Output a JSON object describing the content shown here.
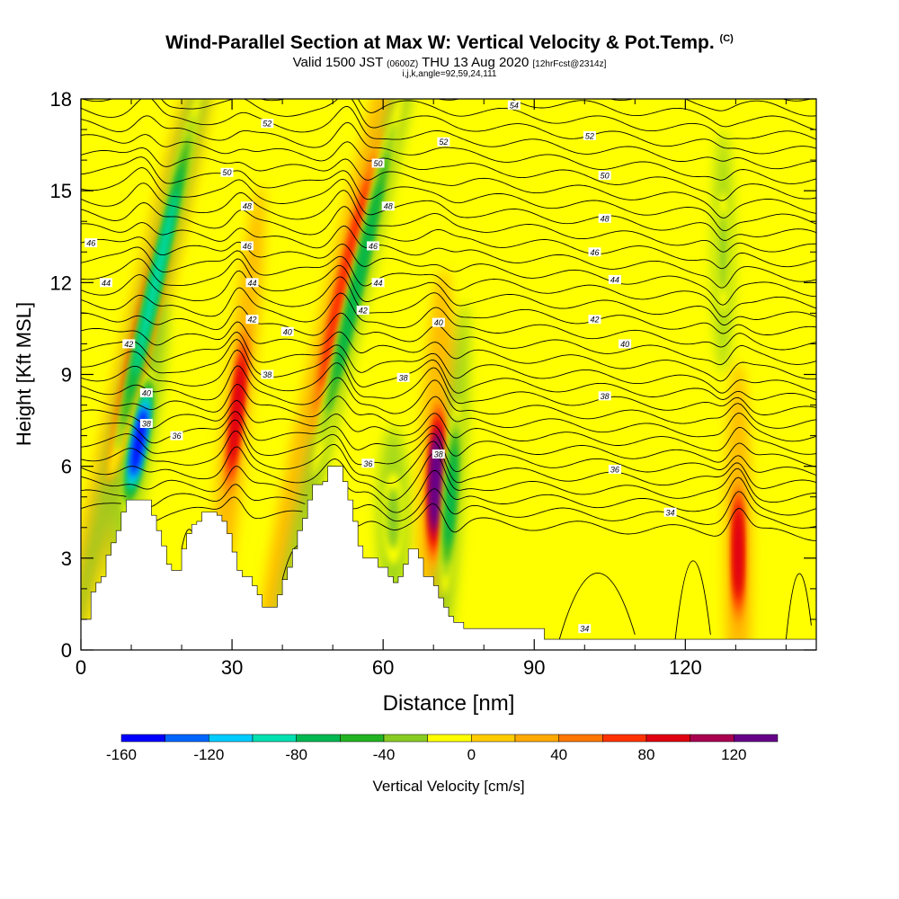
{
  "header": {
    "title": "Wind-Parallel Section at Max W: Vertical Velocity & Pot.Temp.",
    "copyright": "(C)",
    "valid_prefix": "Valid 1500 JST",
    "valid_utc": "(0600Z)",
    "valid_date": "THU 13 Aug 2020",
    "forecast": "[12hrFcst@2314z]",
    "ijk_info": "i,j,k,angle=92,59,24,111"
  },
  "chart_data": {
    "type": "heatmap",
    "xlabel": "Distance [nm]",
    "ylabel": "Height [Kft MSL]",
    "x_ticks": [
      0,
      30,
      60,
      90,
      120
    ],
    "y_ticks": [
      0,
      3,
      6,
      9,
      12,
      15,
      18
    ],
    "xlim": [
      0,
      146
    ],
    "ylim": [
      0,
      18
    ],
    "colorbar": {
      "label": "Vertical Velocity [cm/s]",
      "tick_labels": [
        "-160",
        "-120",
        "-80",
        "-40",
        "0",
        "40",
        "80",
        "120"
      ],
      "tick_values": [
        -160,
        -120,
        -80,
        -40,
        0,
        40,
        80,
        120
      ],
      "range": [
        -160,
        140
      ],
      "bin_width": 20,
      "colors": [
        "#0000ff",
        "#0066ff",
        "#00ccff",
        "#00e0b0",
        "#00b850",
        "#22b422",
        "#88cc22",
        "#ffff00",
        "#ffcc00",
        "#ffaa00",
        "#ff7700",
        "#ff3300",
        "#e00010",
        "#aa0050",
        "#660088"
      ]
    },
    "background_color": "#ffff00",
    "terrain": [
      {
        "x": 0,
        "h": 1.0
      },
      {
        "x": 2,
        "h": 1.9
      },
      {
        "x": 3,
        "h": 2.2
      },
      {
        "x": 4,
        "h": 2.4
      },
      {
        "x": 5,
        "h": 3.1
      },
      {
        "x": 6,
        "h": 3.5
      },
      {
        "x": 7,
        "h": 3.9
      },
      {
        "x": 8,
        "h": 4.5
      },
      {
        "x": 9,
        "h": 4.9
      },
      {
        "x": 10,
        "h": 4.9
      },
      {
        "x": 11,
        "h": 4.9
      },
      {
        "x": 12,
        "h": 4.9
      },
      {
        "x": 13,
        "h": 4.9
      },
      {
        "x": 14,
        "h": 4.4
      },
      {
        "x": 15,
        "h": 3.9
      },
      {
        "x": 16,
        "h": 3.4
      },
      {
        "x": 17,
        "h": 2.8
      },
      {
        "x": 18,
        "h": 2.6
      },
      {
        "x": 19,
        "h": 2.6
      },
      {
        "x": 20,
        "h": 3.3
      },
      {
        "x": 21,
        "h": 3.8
      },
      {
        "x": 22,
        "h": 4.1
      },
      {
        "x": 23,
        "h": 4.2
      },
      {
        "x": 24,
        "h": 4.5
      },
      {
        "x": 26,
        "h": 4.5
      },
      {
        "x": 27,
        "h": 4.4
      },
      {
        "x": 28,
        "h": 4.2
      },
      {
        "x": 29,
        "h": 3.8
      },
      {
        "x": 30,
        "h": 3.2
      },
      {
        "x": 31,
        "h": 2.6
      },
      {
        "x": 32,
        "h": 2.4
      },
      {
        "x": 33,
        "h": 2.4
      },
      {
        "x": 34,
        "h": 2.1
      },
      {
        "x": 35,
        "h": 1.8
      },
      {
        "x": 36,
        "h": 1.4
      },
      {
        "x": 38,
        "h": 1.4
      },
      {
        "x": 39,
        "h": 1.8
      },
      {
        "x": 40,
        "h": 2.3
      },
      {
        "x": 41,
        "h": 2.7
      },
      {
        "x": 42,
        "h": 3.3
      },
      {
        "x": 43,
        "h": 3.9
      },
      {
        "x": 44,
        "h": 4.3
      },
      {
        "x": 45,
        "h": 4.9
      },
      {
        "x": 46,
        "h": 5.4
      },
      {
        "x": 47,
        "h": 5.4
      },
      {
        "x": 48,
        "h": 5.5
      },
      {
        "x": 49,
        "h": 6.0
      },
      {
        "x": 50,
        "h": 6.0
      },
      {
        "x": 51,
        "h": 6.0
      },
      {
        "x": 52,
        "h": 5.5
      },
      {
        "x": 53,
        "h": 4.9
      },
      {
        "x": 54,
        "h": 4.2
      },
      {
        "x": 55,
        "h": 3.4
      },
      {
        "x": 56,
        "h": 3.0
      },
      {
        "x": 57,
        "h": 3.0
      },
      {
        "x": 58,
        "h": 3.0
      },
      {
        "x": 59,
        "h": 2.7
      },
      {
        "x": 60,
        "h": 2.7
      },
      {
        "x": 61,
        "h": 2.4
      },
      {
        "x": 62,
        "h": 2.2
      },
      {
        "x": 63,
        "h": 2.4
      },
      {
        "x": 64,
        "h": 2.8
      },
      {
        "x": 65,
        "h": 3.3
      },
      {
        "x": 66,
        "h": 3.3
      },
      {
        "x": 67,
        "h": 3.0
      },
      {
        "x": 68,
        "h": 2.4
      },
      {
        "x": 69,
        "h": 2.4
      },
      {
        "x": 70,
        "h": 2.1
      },
      {
        "x": 71,
        "h": 1.7
      },
      {
        "x": 72,
        "h": 1.4
      },
      {
        "x": 73,
        "h": 1.1
      },
      {
        "x": 74,
        "h": 0.9
      },
      {
        "x": 75,
        "h": 0.9
      },
      {
        "x": 76,
        "h": 0.7
      },
      {
        "x": 84,
        "h": 0.7
      },
      {
        "x": 85,
        "h": 0.7
      },
      {
        "x": 86,
        "h": 0.7
      },
      {
        "x": 91,
        "h": 0.7
      },
      {
        "x": 92,
        "h": 0.35
      },
      {
        "x": 100,
        "h": 0.35
      },
      {
        "x": 146,
        "h": 0.35
      }
    ],
    "updraft_cores": [
      {
        "x": 12.5,
        "y": 10.5,
        "rx": 1.6,
        "ry": 5.2,
        "tilt": 13,
        "value": 90
      },
      {
        "x": 31.0,
        "y": 7.8,
        "rx": 1.1,
        "ry": 3.1,
        "tilt": 6,
        "value": 90
      },
      {
        "x": 52.5,
        "y": 12.0,
        "rx": 1.5,
        "ry": 5.2,
        "tilt": 13,
        "value": 70
      },
      {
        "x": 70.5,
        "y": 5.5,
        "rx": 1.4,
        "ry": 2.9,
        "tilt": 2,
        "value": 130
      },
      {
        "x": 130.5,
        "y": 3.2,
        "rx": 1.1,
        "ry": 2.6,
        "tilt": 0,
        "value": 90
      }
    ],
    "downdraft_cores": [
      {
        "x": 11.5,
        "y": 6.8,
        "rx": 1.5,
        "ry": 2.4,
        "tilt": 10,
        "value": -150
      },
      {
        "x": 14.8,
        "y": 12.0,
        "rx": 1.3,
        "ry": 6.5,
        "tilt": 13,
        "value": -100
      },
      {
        "x": 55.0,
        "y": 12.0,
        "rx": 1.3,
        "ry": 6.5,
        "tilt": 13,
        "value": -80
      },
      {
        "x": 73.5,
        "y": 5.0,
        "rx": 1.2,
        "ry": 3.2,
        "tilt": 4,
        "value": -80
      },
      {
        "x": 62.0,
        "y": 4.3,
        "rx": 1.6,
        "ry": 1.5,
        "tilt": 0,
        "value": -40
      },
      {
        "x": 127.5,
        "y": 13.0,
        "rx": 1.0,
        "ry": 2.0,
        "tilt": 0,
        "value": -30
      }
    ],
    "theta_contours": {
      "interval_K": 2,
      "labels": [
        {
          "text": "52",
          "x": 37,
          "y": 17.2
        },
        {
          "text": "50",
          "x": 29,
          "y": 15.6
        },
        {
          "text": "48",
          "x": 33,
          "y": 14.5
        },
        {
          "text": "46",
          "x": 33,
          "y": 13.2
        },
        {
          "text": "44",
          "x": 34,
          "y": 12.0
        },
        {
          "text": "42",
          "x": 34,
          "y": 10.8
        },
        {
          "text": "40",
          "x": 41,
          "y": 10.4
        },
        {
          "text": "38",
          "x": 37,
          "y": 9.0
        },
        {
          "text": "36",
          "x": 19,
          "y": 7.0
        },
        {
          "text": "46",
          "x": 2,
          "y": 13.3
        },
        {
          "text": "44",
          "x": 5,
          "y": 12.0
        },
        {
          "text": "42",
          "x": 9.5,
          "y": 10.0
        },
        {
          "text": "40",
          "x": 13,
          "y": 8.4
        },
        {
          "text": "38",
          "x": 13,
          "y": 7.4
        },
        {
          "text": "50",
          "x": 59,
          "y": 15.9
        },
        {
          "text": "48",
          "x": 61,
          "y": 14.5
        },
        {
          "text": "46",
          "x": 58,
          "y": 13.2
        },
        {
          "text": "44",
          "x": 59,
          "y": 12.0
        },
        {
          "text": "42",
          "x": 56,
          "y": 11.1
        },
        {
          "text": "38",
          "x": 64,
          "y": 8.9
        },
        {
          "text": "36",
          "x": 57,
          "y": 6.1
        },
        {
          "text": "54",
          "x": 86,
          "y": 17.8
        },
        {
          "text": "52",
          "x": 72,
          "y": 16.6
        },
        {
          "text": "40",
          "x": 71,
          "y": 10.7
        },
        {
          "text": "38",
          "x": 71,
          "y": 6.4
        },
        {
          "text": "52",
          "x": 101,
          "y": 16.8
        },
        {
          "text": "50",
          "x": 104,
          "y": 15.5
        },
        {
          "text": "48",
          "x": 104,
          "y": 14.1
        },
        {
          "text": "46",
          "x": 102,
          "y": 13.0
        },
        {
          "text": "44",
          "x": 106,
          "y": 12.1
        },
        {
          "text": "42",
          "x": 102,
          "y": 10.8
        },
        {
          "text": "40",
          "x": 108,
          "y": 10.0
        },
        {
          "text": "38",
          "x": 104,
          "y": 8.3
        },
        {
          "text": "36",
          "x": 106,
          "y": 5.9
        },
        {
          "text": "34",
          "x": 117,
          "y": 4.5
        },
        {
          "text": "34",
          "x": 100,
          "y": 0.7
        }
      ]
    }
  }
}
